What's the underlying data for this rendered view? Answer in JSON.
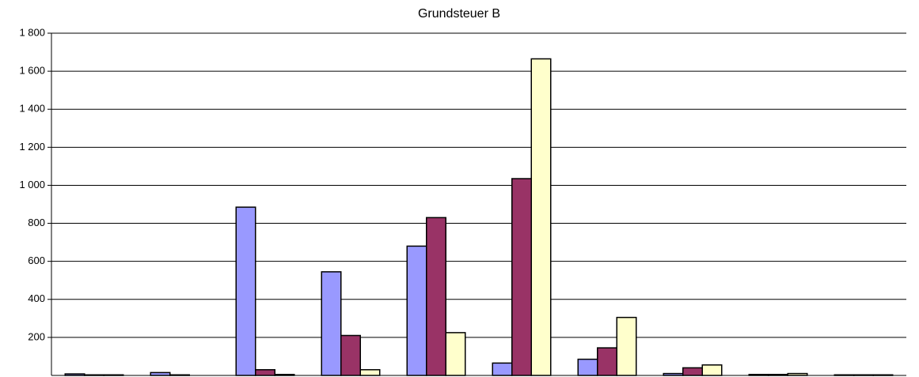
{
  "chart_data": {
    "type": "bar",
    "title": "Grundsteuer B",
    "categories": [
      null,
      null,
      null,
      null,
      null,
      null,
      null,
      null,
      null,
      null
    ],
    "series": [
      {
        "color": "#9999ff",
        "values": [
          8,
          15,
          885,
          545,
          680,
          65,
          85,
          10,
          5,
          3
        ]
      },
      {
        "color": "#993366",
        "values": [
          3,
          3,
          30,
          210,
          830,
          1035,
          145,
          40,
          5,
          3
        ]
      },
      {
        "color": "#ffffcc",
        "values": [
          3,
          0,
          5,
          30,
          225,
          1665,
          305,
          55,
          10,
          3
        ]
      }
    ],
    "ylim": [
      0,
      1800
    ],
    "yticks": [
      200,
      400,
      600,
      800,
      {
        "value": 1000,
        "label": "1 000"
      },
      {
        "value": 1200,
        "label": "1 200"
      },
      {
        "value": 1400,
        "label": "1 400"
      },
      {
        "value": 1600,
        "label": "1 600"
      },
      {
        "value": 1800,
        "label": "1 800"
      }
    ],
    "grid": true
  }
}
